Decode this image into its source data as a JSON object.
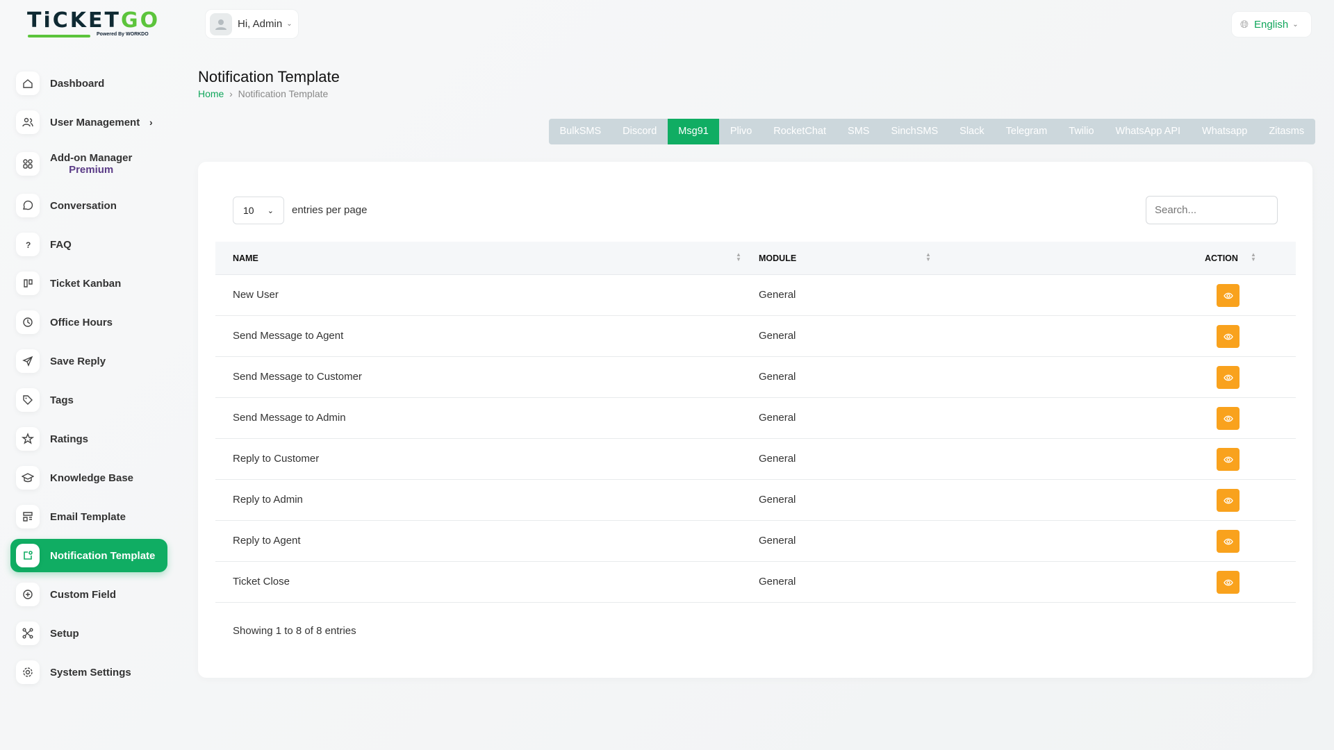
{
  "brand": {
    "name_a": "TiCKET",
    "name_b": "GO",
    "powered": "Powered By WORKDO"
  },
  "header": {
    "greeting": "Hi, Admin",
    "language": "English"
  },
  "sidebar": {
    "items": [
      {
        "label": "Dashboard",
        "icon": "home-icon"
      },
      {
        "label": "User Management",
        "icon": "users-icon",
        "has_children": true
      },
      {
        "label": "Add-on Manager",
        "sub": "Premium",
        "icon": "apps-icon"
      },
      {
        "label": "Conversation",
        "icon": "chat-icon"
      },
      {
        "label": "FAQ",
        "icon": "question-icon"
      },
      {
        "label": "Ticket Kanban",
        "icon": "kanban-icon"
      },
      {
        "label": "Office Hours",
        "icon": "clock-icon"
      },
      {
        "label": "Save Reply",
        "icon": "send-icon"
      },
      {
        "label": "Tags",
        "icon": "tag-icon"
      },
      {
        "label": "Ratings",
        "icon": "star-icon"
      },
      {
        "label": "Knowledge Base",
        "icon": "school-icon"
      },
      {
        "label": "Email Template",
        "icon": "template-icon"
      },
      {
        "label": "Notification Template",
        "icon": "notification-icon",
        "active": true
      },
      {
        "label": "Custom Field",
        "icon": "plus-circle-icon"
      },
      {
        "label": "Setup",
        "icon": "network-icon"
      },
      {
        "label": "System Settings",
        "icon": "gear-icon"
      }
    ]
  },
  "page": {
    "title": "Notification Template",
    "breadcrumb": [
      "Home",
      "Notification Template"
    ]
  },
  "tabs": [
    "BulkSMS",
    "Discord",
    "Msg91",
    "Plivo",
    "RocketChat",
    "SMS",
    "SinchSMS",
    "Slack",
    "Telegram",
    "Twilio",
    "WhatsApp API",
    "Whatsapp",
    "Zitasms"
  ],
  "active_tab": "Msg91",
  "table": {
    "per_page": "10",
    "per_page_label": "entries per page",
    "search_placeholder": "Search...",
    "columns": [
      "NAME",
      "MODULE",
      "ACTION"
    ],
    "rows": [
      {
        "name": "New User",
        "module": "General"
      },
      {
        "name": "Send Message to Agent",
        "module": "General"
      },
      {
        "name": "Send Message to Customer",
        "module": "General"
      },
      {
        "name": "Send Message to Admin",
        "module": "General"
      },
      {
        "name": "Reply to Customer",
        "module": "General"
      },
      {
        "name": "Reply to Admin",
        "module": "General"
      },
      {
        "name": "Reply to Agent",
        "module": "General"
      },
      {
        "name": "Ticket Close",
        "module": "General"
      }
    ],
    "footer": "Showing 1 to 8 of 8 entries"
  },
  "colors": {
    "accent": "#10ad63",
    "action": "#f9a21d",
    "tabs_bg": "#ccd7dc",
    "premium": "#5a3b86"
  }
}
